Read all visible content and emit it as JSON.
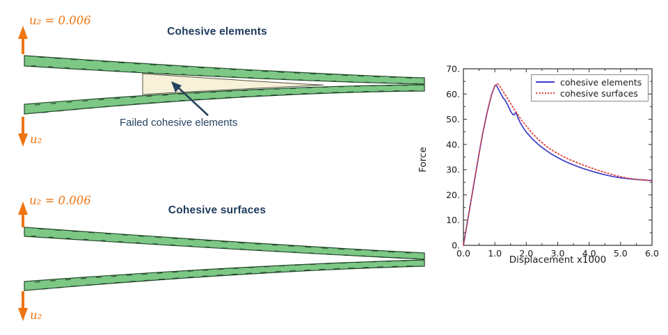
{
  "figure": {
    "top_diagram": {
      "title": "Cohesive elements",
      "load_label_top": "u₂ = 0.006",
      "load_label_bottom": "u₂",
      "annotation": "Failed cohesive elements"
    },
    "bottom_diagram": {
      "title": "Cohesive surfaces",
      "load_label_top": "u₂ = 0.006",
      "load_label_bottom": "u₂"
    },
    "colors": {
      "beam_fill": "#7cc884",
      "beam_edge": "#23482b",
      "failed_zone_fill": "#f6f1d8",
      "failed_zone_edge": "#55533f",
      "arrow_orange": "#ee7512",
      "title_navy": "#1e3a5c",
      "annotation_arrow": "#24415f"
    }
  },
  "chart_data": {
    "type": "line",
    "title": "",
    "xlabel": "Displacement x1000",
    "ylabel": "Force",
    "xlim": [
      0,
      6
    ],
    "ylim": [
      0,
      70
    ],
    "grid": false,
    "legend_position": "upper right",
    "x_major_ticks": [
      0,
      1,
      2,
      3,
      4,
      5,
      6
    ],
    "x_minor_step": 0.5,
    "y_major_ticks": [
      0,
      10,
      20,
      30,
      40,
      50,
      60,
      70
    ],
    "y_minor_step": 5,
    "x_tick_labels": [
      "0.0",
      "1.0",
      "2.0",
      "3.0",
      "4.0",
      "5.0",
      "6.0"
    ],
    "y_tick_labels": [
      "0.",
      "10.",
      "20.",
      "30.",
      "40.",
      "50.",
      "60.",
      "70."
    ],
    "series": [
      {
        "name": "cohesive elements",
        "color": "#3a3ac8",
        "style": "solid",
        "x": [
          0,
          0.15,
          0.3,
          0.45,
          0.6,
          0.75,
          0.9,
          1.0,
          1.05,
          1.12,
          1.2,
          1.27,
          1.31,
          1.4,
          1.5,
          1.57,
          1.61,
          1.65,
          1.69,
          1.74,
          1.8,
          1.9,
          2.0,
          2.2,
          2.4,
          2.6,
          2.8,
          3.0,
          3.2,
          3.4,
          3.6,
          3.8,
          4.0,
          4.25,
          4.5,
          4.75,
          5.0,
          5.25,
          5.5,
          5.75,
          6.0
        ],
        "y": [
          0,
          11,
          22,
          33,
          43.5,
          52.5,
          60,
          63.3,
          63.4,
          61.8,
          59.9,
          58.3,
          57.9,
          55.9,
          53.2,
          51.9,
          51.7,
          52.5,
          52.1,
          50.4,
          48.8,
          46.7,
          44.9,
          42.1,
          39.8,
          37.9,
          36.2,
          34.8,
          33.5,
          32.4,
          31.4,
          30.5,
          29.7,
          28.8,
          28.0,
          27.3,
          26.8,
          26.4,
          26.1,
          25.9,
          25.7
        ]
      },
      {
        "name": "cohesive surfaces",
        "color": "#e0403a",
        "style": "dotted",
        "x": [
          0,
          0.15,
          0.3,
          0.45,
          0.6,
          0.75,
          0.9,
          1.0,
          1.08,
          1.15,
          1.25,
          1.35,
          1.45,
          1.55,
          1.63,
          1.68,
          1.75,
          1.85,
          2.0,
          2.2,
          2.4,
          2.6,
          2.8,
          3.0,
          3.2,
          3.4,
          3.6,
          3.8,
          4.0,
          4.25,
          4.5,
          4.75,
          5.0,
          5.25,
          5.5,
          5.75,
          6.0
        ],
        "y": [
          0,
          11,
          22,
          33,
          43.5,
          52.5,
          60,
          63.2,
          64.2,
          63.3,
          61.3,
          59.3,
          57.3,
          55.3,
          53.6,
          52.9,
          51.4,
          49.6,
          47.3,
          44.3,
          41.8,
          39.7,
          37.9,
          36.4,
          35.1,
          33.9,
          32.9,
          31.9,
          31.0,
          29.9,
          28.9,
          28.0,
          27.2,
          26.6,
          26.2,
          25.9,
          25.6
        ]
      }
    ]
  }
}
